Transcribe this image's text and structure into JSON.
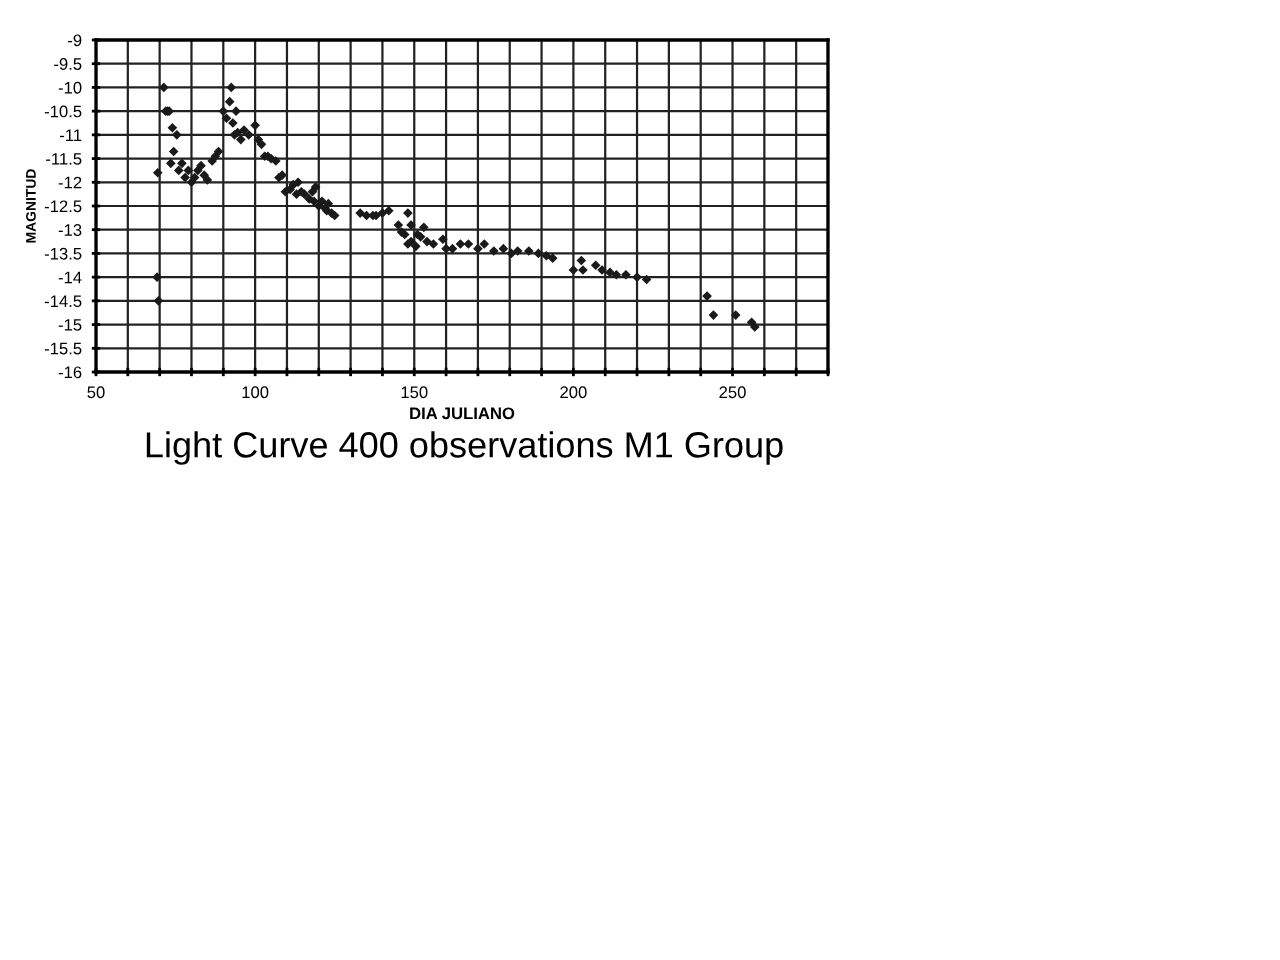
{
  "chart_data": {
    "type": "scatter",
    "xlabel": "DIA JULIANO",
    "ylabel": "MAGNITUD",
    "annotations": [
      "Light Curve 400 observations M1 Group"
    ],
    "series": [
      {
        "color": "#1a1a1a",
        "x": [
          69.4,
          69.2,
          69.6,
          71.3,
          71.9,
          72.5,
          73,
          74,
          74.4,
          75.4,
          73.5,
          76,
          77,
          78,
          79,
          80,
          81,
          82,
          83,
          84,
          85,
          86.5,
          87.5,
          88.5,
          90,
          91,
          92,
          92.5,
          93,
          94,
          93.5,
          94.5,
          95.5,
          96.5,
          98,
          100,
          101,
          102,
          103,
          104,
          105,
          106.5,
          107.5,
          108.5,
          109.5,
          111,
          112,
          113,
          113.5,
          114.5,
          115.5,
          117,
          118,
          118.5,
          119,
          120,
          121,
          122,
          122.5,
          123,
          124,
          125,
          133,
          135,
          137,
          138,
          140,
          142,
          145,
          146,
          147,
          148,
          149,
          150.5,
          148,
          149,
          151,
          153,
          152,
          154,
          156,
          159,
          160,
          162,
          164.5,
          167,
          170,
          172,
          175,
          178,
          180.5,
          182.5,
          186,
          189,
          191.5,
          193.5,
          200,
          202.5,
          203,
          207,
          209,
          211.5,
          213.5,
          216.5,
          220,
          223,
          242,
          244,
          251,
          256,
          257
        ],
        "values": [
          -11.8,
          -14.0,
          -14.5,
          -10.0,
          -10.5,
          -10.5,
          -10.5,
          -10.85,
          -11.35,
          -11.0,
          -11.6,
          -11.75,
          -11.6,
          -11.9,
          -11.75,
          -12.0,
          -11.9,
          -11.75,
          -11.65,
          -11.85,
          -11.95,
          -11.55,
          -11.45,
          -11.35,
          -10.5,
          -10.65,
          -10.3,
          -10.0,
          -10.75,
          -10.5,
          -11.0,
          -10.95,
          -11.1,
          -10.9,
          -11.0,
          -10.8,
          -11.1,
          -11.2,
          -11.45,
          -11.45,
          -11.5,
          -11.55,
          -11.9,
          -11.85,
          -12.2,
          -12.15,
          -12.05,
          -12.25,
          -12.0,
          -12.2,
          -12.25,
          -12.35,
          -12.2,
          -12.4,
          -12.1,
          -12.5,
          -12.4,
          -12.55,
          -12.6,
          -12.45,
          -12.65,
          -12.7,
          -12.65,
          -12.7,
          -12.7,
          -12.7,
          -12.65,
          -12.6,
          -12.9,
          -13.05,
          -13.1,
          -13.3,
          -13.25,
          -13.35,
          -12.65,
          -12.9,
          -13.1,
          -12.95,
          -13.15,
          -13.25,
          -13.3,
          -13.2,
          -13.4,
          -13.4,
          -13.3,
          -13.3,
          -13.4,
          -13.3,
          -13.45,
          -13.4,
          -13.5,
          -13.45,
          -13.45,
          -13.5,
          -13.55,
          -13.6,
          -13.85,
          -13.65,
          -13.85,
          -13.75,
          -13.85,
          -13.9,
          -13.95,
          -13.95,
          -14.0,
          -14.05,
          -14.4,
          -14.8,
          -14.8,
          -14.95,
          -15.05
        ]
      }
    ],
    "marker": "diamond",
    "grid": true,
    "xlim": [
      50,
      280
    ],
    "xticks": [
      50,
      {
        "value": 60,
        "label": null
      },
      {
        "value": 70,
        "label": null
      },
      {
        "value": 80,
        "label": null
      },
      {
        "value": 90,
        "label": null
      },
      100,
      {
        "value": 110,
        "label": null
      },
      {
        "value": 120,
        "label": null
      },
      {
        "value": 130,
        "label": null
      },
      {
        "value": 140,
        "label": null
      },
      150,
      {
        "value": 160,
        "label": null
      },
      {
        "value": 170,
        "label": null
      },
      {
        "value": 180,
        "label": null
      },
      {
        "value": 190,
        "label": null
      },
      200,
      {
        "value": 210,
        "label": null
      },
      {
        "value": 220,
        "label": null
      },
      {
        "value": 230,
        "label": null
      },
      {
        "value": 240,
        "label": null
      },
      250,
      {
        "value": 260,
        "label": null
      },
      {
        "value": 270,
        "label": null
      },
      {
        "value": 280,
        "label": null
      }
    ],
    "ylim": [
      -16,
      -9
    ],
    "yticks": [
      -9,
      -9.5,
      -10,
      -10.5,
      -11,
      -11.5,
      -12,
      -12.5,
      -13,
      -13.5,
      -14,
      -14.5,
      -15,
      -15.5,
      -16
    ]
  }
}
